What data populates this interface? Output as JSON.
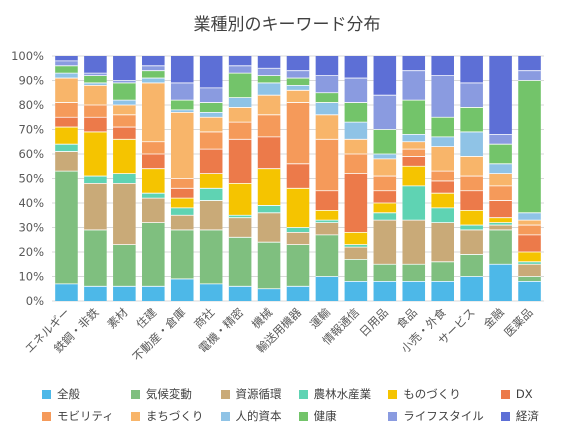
{
  "chart_data": {
    "type": "bar",
    "stacked": true,
    "title": "業種別のキーワード分布",
    "xlabel": "",
    "ylabel": "",
    "ylim": [
      0,
      100
    ],
    "y_ticks": [
      "0%",
      "10%",
      "20%",
      "30%",
      "40%",
      "50%",
      "60%",
      "70%",
      "80%",
      "90%",
      "100%"
    ],
    "grid": true,
    "legend_position": "bottom",
    "categories": [
      "エネルギー",
      "鉄鋼・非鉄",
      "素材",
      "住建",
      "不動産・倉庫",
      "商社",
      "電機・精密",
      "機械",
      "輸送用機器",
      "運輸",
      "情報通信",
      "日用品",
      "食品",
      "小売・外食",
      "サービス",
      "金融",
      "医薬品"
    ],
    "series": [
      {
        "name": "全般",
        "color": "#4db8e8",
        "values": [
          7,
          6,
          6,
          6,
          9,
          7,
          6,
          5,
          6,
          10,
          8,
          8,
          8,
          8,
          10,
          15,
          8
        ]
      },
      {
        "name": "気候変動",
        "color": "#7fbf7f",
        "values": [
          46,
          23,
          17,
          26,
          20,
          22,
          20,
          19,
          17,
          17,
          9,
          7,
          7,
          8,
          9,
          14,
          2
        ]
      },
      {
        "name": "資源循環",
        "color": "#c9aa78",
        "values": [
          8,
          19,
          25,
          10,
          6,
          12,
          8,
          12,
          5,
          5,
          5,
          18,
          18,
          16,
          10,
          2,
          5
        ]
      },
      {
        "name": "農林水産業",
        "color": "#5fd3b3",
        "values": [
          3,
          3,
          4,
          2,
          3,
          5,
          1,
          3,
          2,
          1,
          1,
          3,
          14,
          6,
          2,
          1,
          1
        ]
      },
      {
        "name": "ものづくり",
        "color": "#f5c400",
        "values": [
          7,
          18,
          14,
          10,
          4,
          6,
          13,
          15,
          16,
          4,
          5,
          4,
          8,
          6,
          6,
          2,
          4
        ]
      },
      {
        "name": "DX",
        "color": "#ec7a4a",
        "values": [
          4,
          6,
          5,
          6,
          4,
          10,
          18,
          13,
          10,
          8,
          24,
          5,
          4,
          5,
          8,
          7,
          7
        ]
      },
      {
        "name": "モビリティ",
        "color": "#f59a5a",
        "values": [
          6,
          5,
          5,
          5,
          4,
          7,
          7,
          9,
          25,
          21,
          8,
          6,
          3,
          4,
          6,
          6,
          4
        ]
      },
      {
        "name": "まちづくり",
        "color": "#f8b56a",
        "values": [
          10,
          8,
          4,
          24,
          27,
          6,
          6,
          8,
          5,
          10,
          6,
          7,
          3,
          10,
          8,
          5,
          2
        ]
      },
      {
        "name": "人的資本",
        "color": "#8fc3e6",
        "values": [
          2,
          1,
          2,
          2,
          1,
          2,
          4,
          5,
          2,
          5,
          7,
          2,
          3,
          4,
          10,
          4,
          3
        ]
      },
      {
        "name": "健康",
        "color": "#73c46a",
        "values": [
          3,
          3,
          7,
          3,
          4,
          4,
          10,
          3,
          3,
          4,
          8,
          10,
          14,
          8,
          10,
          8,
          54
        ]
      },
      {
        "name": "ライフスタイル",
        "color": "#8a9be0",
        "values": [
          2,
          1,
          1,
          2,
          7,
          6,
          3,
          3,
          3,
          7,
          10,
          14,
          12,
          17,
          10,
          4,
          4
        ]
      },
      {
        "name": "経済",
        "color": "#5d6fd6",
        "values": [
          2,
          7,
          10,
          4,
          11,
          13,
          4,
          5,
          6,
          8,
          9,
          16,
          6,
          8,
          11,
          32,
          6
        ]
      }
    ]
  }
}
